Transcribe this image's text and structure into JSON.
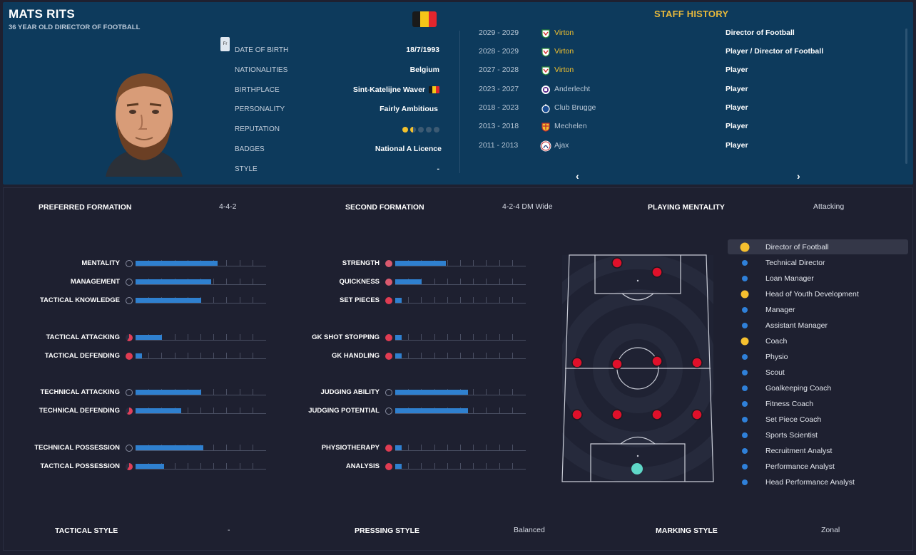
{
  "staff": {
    "name": "MATS RITS",
    "subtitle": "36 YEAR OLD DIRECTOR OF FOOTBALL",
    "small_tag": "Fr",
    "flag_colors": [
      "#1a1a1a",
      "#f5c518",
      "#e2262d"
    ]
  },
  "info": [
    {
      "label": "DATE OF BIRTH",
      "value": "18/7/1993"
    },
    {
      "label": "NATIONALITIES",
      "value": "Belgium"
    },
    {
      "label": "BIRTHPLACE",
      "value": "Sint-Katelijne Waver"
    },
    {
      "label": "PERSONALITY",
      "value": "Fairly Ambitious"
    },
    {
      "label": "REPUTATION",
      "value": ""
    },
    {
      "label": "BADGES",
      "value": "National A Licence"
    },
    {
      "label": "STYLE",
      "value": "-"
    }
  ],
  "reputation": {
    "full": 1,
    "half": 1,
    "empty": 3,
    "color_full": "#f2c12e",
    "color_empty": "#3c5a73"
  },
  "staff_history": {
    "title": "STAFF HISTORY",
    "rows": [
      {
        "years": "2029 - 2029",
        "club": "Virton",
        "role": "Director of Football",
        "club_color": "#f2c12e",
        "badge_icon": "virton-badge-icon"
      },
      {
        "years": "2028 - 2029",
        "club": "Virton",
        "role": "Player / Director of Football",
        "club_color": "#f2c12e",
        "badge_icon": "virton-badge-icon"
      },
      {
        "years": "2027 - 2028",
        "club": "Virton",
        "role": "Player",
        "club_color": "#f2c12e",
        "badge_icon": "virton-badge-icon"
      },
      {
        "years": "2023 - 2027",
        "club": "Anderlecht",
        "role": "Player",
        "club_color": "#b8c7d6",
        "badge_icon": "anderlecht-badge-icon"
      },
      {
        "years": "2018 - 2023",
        "club": "Club Brugge",
        "role": "Player",
        "club_color": "#b8c7d6",
        "badge_icon": "club-brugge-badge-icon"
      },
      {
        "years": "2013 - 2018",
        "club": "Mechelen",
        "role": "Player",
        "club_color": "#b8c7d6",
        "badge_icon": "mechelen-badge-icon"
      },
      {
        "years": "2011 - 2013",
        "club": "Ajax",
        "role": "Player",
        "club_color": "#b8c7d6",
        "badge_icon": "ajax-badge-icon"
      }
    ],
    "prev_arrow": "‹",
    "next_arrow": "›"
  },
  "formations": {
    "preferred_label": "PREFERRED FORMATION",
    "preferred_value": "4-4-2",
    "second_label": "SECOND FORMATION",
    "second_value": "4-2-4 DM Wide",
    "mentality_label": "PLAYING MENTALITY",
    "mentality_value": "Attacking"
  },
  "styles": {
    "tactical_label": "TACTICAL STYLE",
    "tactical_value": "-",
    "pressing_label": "PRESSING STYLE",
    "pressing_value": "Balanced",
    "marking_label": "MARKING STYLE",
    "marking_value": "Zonal"
  },
  "attributes_left": [
    {
      "label": "MENTALITY",
      "value": 0.63,
      "icon": "neutral"
    },
    {
      "label": "MANAGEMENT",
      "value": 0.58,
      "icon": "neutral"
    },
    {
      "label": "TACTICAL KNOWLEDGE",
      "value": 0.5,
      "icon": "neutral"
    },
    {
      "label": "TACTICAL ATTACKING",
      "value": 0.2,
      "icon": "partial"
    },
    {
      "label": "TACTICAL DEFENDING",
      "value": 0.05,
      "icon": "low"
    },
    {
      "label": "TECHNICAL ATTACKING",
      "value": 0.5,
      "icon": "neutral"
    },
    {
      "label": "TECHNICAL DEFENDING",
      "value": 0.35,
      "icon": "partial"
    },
    {
      "label": "TECHNICAL POSSESSION",
      "value": 0.52,
      "icon": "neutral"
    },
    {
      "label": "TACTICAL POSSESSION",
      "value": 0.22,
      "icon": "partial"
    }
  ],
  "attributes_right": [
    {
      "label": "STRENGTH",
      "value": 0.39,
      "icon": "mid"
    },
    {
      "label": "QUICKNESS",
      "value": 0.2,
      "icon": "mid"
    },
    {
      "label": "SET PIECES",
      "value": 0.05,
      "icon": "low"
    },
    {
      "label": "GK SHOT STOPPING",
      "value": 0.05,
      "icon": "low"
    },
    {
      "label": "GK HANDLING",
      "value": 0.05,
      "icon": "low"
    },
    {
      "label": "JUDGING ABILITY",
      "value": 0.56,
      "icon": "neutral"
    },
    {
      "label": "JUDGING POTENTIAL",
      "value": 0.56,
      "icon": "neutral"
    },
    {
      "label": "PHYSIOTHERAPY",
      "value": 0.05,
      "icon": "low"
    },
    {
      "label": "ANALYSIS",
      "value": 0.05,
      "icon": "low"
    }
  ],
  "role_suitability": [
    {
      "label": "Director of Football",
      "dot": "#f6c02f",
      "big": true,
      "active": true
    },
    {
      "label": "Technical Director",
      "dot": "#2f80d9",
      "big": false,
      "active": false
    },
    {
      "label": "Loan Manager",
      "dot": "#2f80d9",
      "big": false,
      "active": false
    },
    {
      "label": "Head of Youth Development",
      "dot": "#f6c02f",
      "big": false,
      "active": false
    },
    {
      "label": "Manager",
      "dot": "#2f80d9",
      "big": false,
      "active": false
    },
    {
      "label": "Assistant Manager",
      "dot": "#2f80d9",
      "big": false,
      "active": false
    },
    {
      "label": "Coach",
      "dot": "#f6c02f",
      "big": false,
      "active": false
    },
    {
      "label": "Physio",
      "dot": "#2f80d9",
      "big": false,
      "active": false
    },
    {
      "label": "Scout",
      "dot": "#2f80d9",
      "big": false,
      "active": false
    },
    {
      "label": "Goalkeeping Coach",
      "dot": "#2f80d9",
      "big": false,
      "active": false
    },
    {
      "label": "Fitness Coach",
      "dot": "#2f80d9",
      "big": false,
      "active": false
    },
    {
      "label": "Set Piece Coach",
      "dot": "#2f80d9",
      "big": false,
      "active": false
    },
    {
      "label": "Sports Scientist",
      "dot": "#2f80d9",
      "big": false,
      "active": false
    },
    {
      "label": "Recruitment Analyst",
      "dot": "#2f80d9",
      "big": false,
      "active": false
    },
    {
      "label": "Performance Analyst",
      "dot": "#2f80d9",
      "big": false,
      "active": false
    },
    {
      "label": "Head Performance Analyst",
      "dot": "#2f80d9",
      "big": false,
      "active": false
    }
  ],
  "colors": {
    "accent": "#e8b93c",
    "bar_fill": "#2f80cf",
    "player_dot": "#e0102a",
    "goalkeeper_dot": "#5fd8c8",
    "top_panel": "#0d3a5c"
  }
}
